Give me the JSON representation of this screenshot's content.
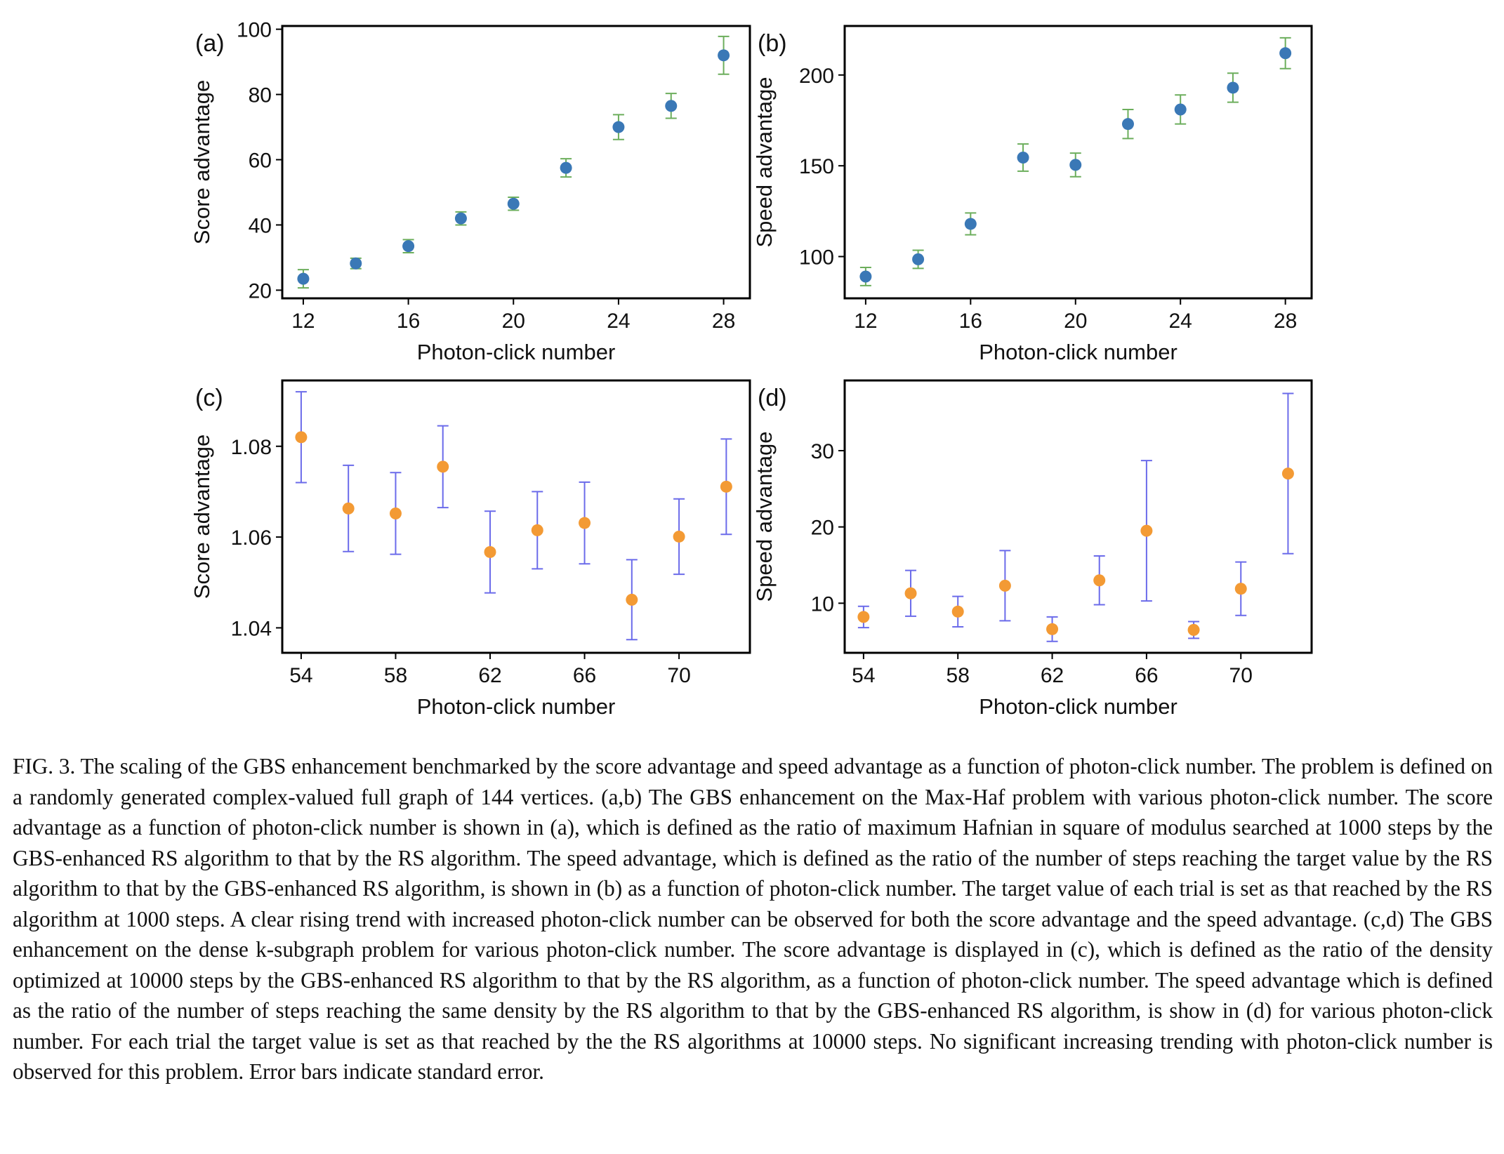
{
  "chart_data": [
    {
      "type": "scatter",
      "panel_label": "(a)",
      "xlabel": "Photon-click number",
      "ylabel": "Score advantage",
      "xlim": [
        11.2,
        29.0
      ],
      "ylim": [
        17.5,
        101
      ],
      "xticks": [
        12,
        16,
        20,
        24,
        28
      ],
      "yticks": [
        20,
        40,
        60,
        80,
        100
      ],
      "marker_color": "#3a78b6",
      "errorbar_color": "#6cae5c",
      "x": [
        12,
        14,
        16,
        18,
        20,
        22,
        24,
        26,
        28
      ],
      "y": [
        23.5,
        28.2,
        33.5,
        42.0,
        46.5,
        57.5,
        70.0,
        76.5,
        92.0
      ],
      "err": [
        2.8,
        1.6,
        2.0,
        2.0,
        2.0,
        2.8,
        3.8,
        3.8,
        5.8
      ]
    },
    {
      "type": "scatter",
      "panel_label": "(b)",
      "xlabel": "Photon-click number",
      "ylabel": "Speed advantage",
      "xlim": [
        11.2,
        29.0
      ],
      "ylim": [
        77,
        227
      ],
      "xticks": [
        12,
        16,
        20,
        24,
        28
      ],
      "yticks": [
        100,
        150,
        200
      ],
      "marker_color": "#3a78b6",
      "errorbar_color": "#6cae5c",
      "x": [
        12,
        14,
        16,
        18,
        20,
        22,
        24,
        26,
        28
      ],
      "y": [
        89.0,
        98.5,
        118.0,
        154.5,
        150.5,
        173.0,
        181.0,
        193.0,
        212.0
      ],
      "err": [
        5.0,
        5.0,
        6.0,
        7.5,
        6.5,
        8.0,
        8.0,
        8.0,
        8.5
      ]
    },
    {
      "type": "scatter",
      "panel_label": "(c)",
      "xlabel": "Photon-click number",
      "ylabel": "Score advantage",
      "xlim": [
        53.2,
        73.0
      ],
      "ylim": [
        1.0345,
        1.0945
      ],
      "xticks": [
        54,
        58,
        62,
        66,
        70
      ],
      "yticks": [
        1.04,
        1.06,
        1.08
      ],
      "ytick_labels": [
        "1.04",
        "1.06",
        "1.08"
      ],
      "marker_color": "#f39a34",
      "errorbar_color": "#6b6bea",
      "x": [
        54,
        56,
        58,
        60,
        62,
        64,
        66,
        68,
        70,
        72
      ],
      "y": [
        1.082,
        1.0663,
        1.0652,
        1.0755,
        1.0567,
        1.0615,
        1.0631,
        1.0462,
        1.0601,
        1.0711
      ],
      "err": [
        0.01,
        0.0095,
        0.009,
        0.009,
        0.009,
        0.0085,
        0.009,
        0.0088,
        0.0083,
        0.0105
      ]
    },
    {
      "type": "scatter",
      "panel_label": "(d)",
      "xlabel": "Photon-click number",
      "ylabel": "Speed advantage",
      "xlim": [
        53.2,
        73.0
      ],
      "ylim": [
        3.5,
        39.2
      ],
      "xticks": [
        54,
        58,
        62,
        66,
        70
      ],
      "yticks": [
        10,
        20,
        30
      ],
      "marker_color": "#f39a34",
      "errorbar_color": "#6b6bea",
      "x": [
        54,
        56,
        58,
        60,
        62,
        64,
        66,
        68,
        70,
        72
      ],
      "y": [
        8.2,
        11.3,
        8.9,
        12.3,
        6.6,
        13.0,
        19.5,
        6.5,
        11.9,
        27.0
      ],
      "err": [
        1.4,
        3.0,
        2.0,
        4.6,
        1.6,
        3.2,
        9.2,
        1.1,
        3.5,
        10.5
      ]
    }
  ],
  "caption": "FIG. 3. The scaling of the GBS enhancement benchmarked by the score advantage and speed advantage as a function of photon-click number. The problem is defined on a randomly generated complex-valued full graph of 144 vertices. (a,b) The GBS enhancement on the Max-Haf problem with various photon-click number. The score advantage as a function of photon-click number is shown in (a), which is defined as the ratio of maximum Hafnian in square of modulus searched at 1000 steps by the GBS-enhanced RS algorithm to that by the RS algorithm. The speed advantage, which is defined as the ratio of the number of steps reaching the target value by the RS algorithm to that by the GBS-enhanced RS algorithm, is shown in (b) as a function of photon-click number. The target value of each trial is set as that reached by the RS algorithm at 1000 steps. A clear rising trend with increased photon-click number can be observed for both the score advantage and the speed advantage. (c,d) The GBS enhancement on the dense k-subgraph problem for various photon-click number. The score advantage is displayed in (c), which is defined as the ratio of the density optimized at 10000 steps by the GBS-enhanced RS algorithm to that by the RS algorithm, as a function of photon-click number. The speed advantage which is defined as the ratio of the number of steps reaching the same density by the RS algorithm to that by the GBS-enhanced RS algorithm, is show in (d) for various photon-click number. For each trial the target value is set as that reached by the the RS algorithms at 10000 steps. No significant increasing trending with photon-click number is observed for this problem. Error bars indicate standard error."
}
